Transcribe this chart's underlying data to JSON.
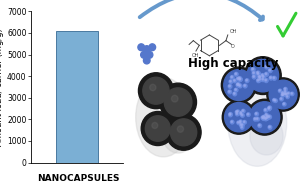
{
  "bar_value": 6100,
  "bar_color_main": "#7bafd4",
  "bar_color_edge": "#4a7aa0",
  "ylim": [
    0,
    7000
  ],
  "yticks": [
    0,
    1000,
    2000,
    3000,
    4000,
    5000,
    6000,
    7000
  ],
  "ylabel": "Amount load/ carrier (mg/g)",
  "xlabel": "NANOCAPSULES",
  "xlabel_fontsize": 6.5,
  "ylabel_fontsize": 6,
  "tick_fontsize": 5.5,
  "high_capacity_text": "High capacity",
  "high_capacity_fontsize": 8.5,
  "arrow_color": "#6699cc",
  "checkmark_color": "#33cc33",
  "molecule_dot_color": "#5577cc",
  "dark_capsule_outer": "#1a1a1a",
  "dark_capsule_inner": "#404040",
  "blue_capsule_outer": "#1a1a1a",
  "blue_capsule_fill": "#4466bb",
  "blue_dot_color": "#6688dd",
  "blue_dot_highlight": "#99aaee",
  "bg_gray": "#c8c8c8",
  "bg_blue_gray": "#c8ccd8"
}
